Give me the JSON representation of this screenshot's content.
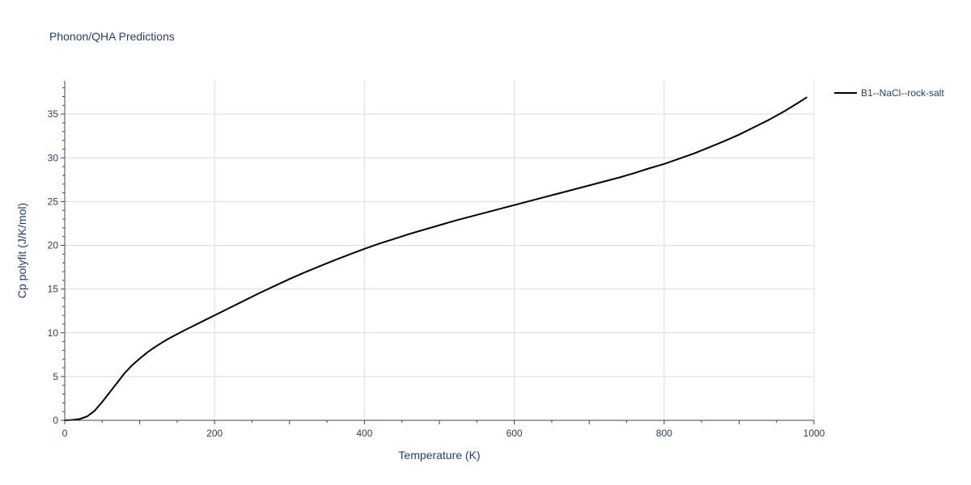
{
  "chart_data": {
    "type": "line",
    "title": "Phonon/QHA Predictions",
    "xlabel": "Temperature (K)",
    "ylabel": "Cp polyfit (J/K/mol)",
    "xlim": [
      0,
      1000
    ],
    "ylim": [
      0,
      38.8
    ],
    "x_ticks": [
      0,
      200,
      400,
      600,
      800,
      1000
    ],
    "y_ticks": [
      0,
      5,
      10,
      15,
      20,
      25,
      30,
      35
    ],
    "grid": true,
    "legend_position": "top-right",
    "series": [
      {
        "name": "B1--NaCl--rock-salt",
        "color": "#000000",
        "x": [
          0,
          10,
          20,
          30,
          40,
          50,
          60,
          70,
          80,
          90,
          100,
          110,
          120,
          130,
          140,
          150,
          160,
          180,
          200,
          220,
          240,
          260,
          280,
          300,
          320,
          340,
          360,
          380,
          400,
          420,
          440,
          460,
          480,
          500,
          520,
          540,
          560,
          580,
          600,
          620,
          640,
          660,
          680,
          700,
          720,
          740,
          760,
          780,
          800,
          820,
          840,
          860,
          880,
          900,
          920,
          940,
          960,
          980,
          990
        ],
        "y": [
          0,
          0.05,
          0.15,
          0.45,
          1.1,
          2.1,
          3.2,
          4.3,
          5.4,
          6.3,
          7.05,
          7.75,
          8.35,
          8.9,
          9.4,
          9.85,
          10.3,
          11.15,
          12.0,
          12.85,
          13.7,
          14.55,
          15.35,
          16.15,
          16.9,
          17.6,
          18.3,
          18.95,
          19.6,
          20.2,
          20.75,
          21.3,
          21.8,
          22.3,
          22.8,
          23.25,
          23.7,
          24.15,
          24.6,
          25.05,
          25.5,
          25.95,
          26.4,
          26.85,
          27.3,
          27.75,
          28.25,
          28.8,
          29.3,
          29.9,
          30.5,
          31.2,
          31.9,
          32.65,
          33.5,
          34.35,
          35.3,
          36.35,
          36.9
        ]
      }
    ]
  }
}
